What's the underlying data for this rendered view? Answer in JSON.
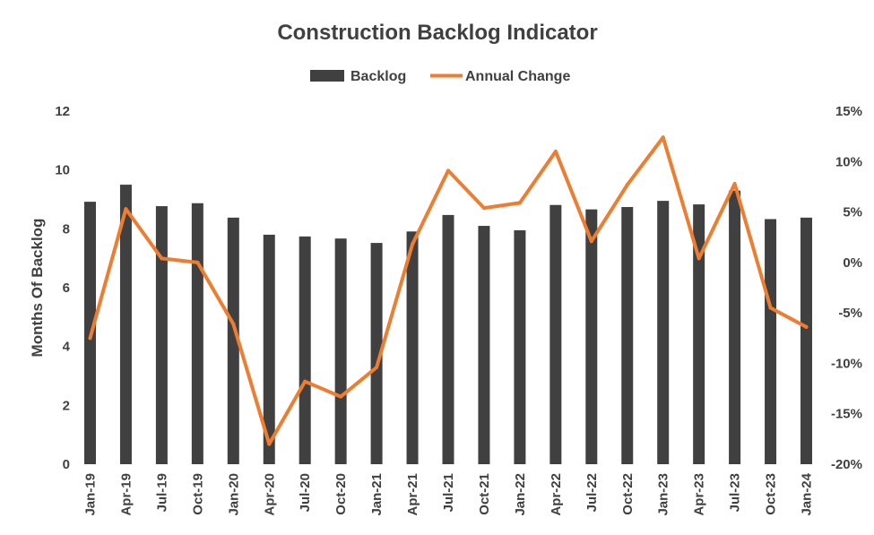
{
  "chart_data": {
    "type": "bar",
    "title": "Construction Backlog Indicator",
    "ylabel": "Months Of Backlog",
    "y2label": "",
    "ylim": [
      0,
      12
    ],
    "y2lim": [
      -20,
      15
    ],
    "yticks": [
      "0",
      "2",
      "4",
      "6",
      "8",
      "10",
      "12"
    ],
    "y2ticks": [
      "-20%",
      "-15%",
      "-10%",
      "-5%",
      "0%",
      "5%",
      "10%",
      "15%"
    ],
    "categories": [
      "Jan-19",
      "Apr-19",
      "Jul-19",
      "Oct-19",
      "Jan-20",
      "Apr-20",
      "Jul-20",
      "Oct-20",
      "Jan-21",
      "Apr-21",
      "Jul-21",
      "Oct-21",
      "Jan-22",
      "Apr-22",
      "Jul-22",
      "Oct-22",
      "Jan-23",
      "Apr-23",
      "Jul-23",
      "Oct-23",
      "Jan-24"
    ],
    "series": [
      {
        "name": "Backlog",
        "type": "bar",
        "axis": "left",
        "color": "#404040",
        "values": [
          8.92,
          9.5,
          8.77,
          8.87,
          8.38,
          7.8,
          7.74,
          7.67,
          7.52,
          7.91,
          8.47,
          8.1,
          7.95,
          8.81,
          8.66,
          8.74,
          8.95,
          8.83,
          9.3,
          8.33,
          8.38
        ]
      },
      {
        "name": "Annual Change",
        "type": "line",
        "axis": "right",
        "color": "#ED7D31",
        "values": [
          -7.5,
          5.3,
          0.4,
          0.0,
          -6.1,
          -18.0,
          -11.8,
          -13.3,
          -10.4,
          1.8,
          9.1,
          5.4,
          5.9,
          11.0,
          2.1,
          7.7,
          12.4,
          0.4,
          7.8,
          -4.5,
          -6.4
        ]
      }
    ],
    "legend": "top",
    "grid": false
  }
}
